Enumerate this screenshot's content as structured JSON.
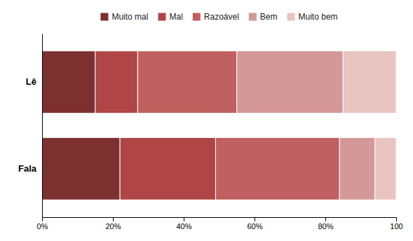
{
  "chart_data": {
    "type": "bar",
    "orientation": "horizontal",
    "stacked": true,
    "categories": [
      "Lê",
      "Fala"
    ],
    "series": [
      {
        "name": "Muito mal",
        "color": "#7D3030",
        "values": [
          15,
          22
        ]
      },
      {
        "name": "Mal",
        "color": "#B04545",
        "values": [
          12,
          27
        ]
      },
      {
        "name": "Razoável",
        "color": "#C06060",
        "values": [
          28,
          35
        ]
      },
      {
        "name": "Bem",
        "color": "#D49898",
        "values": [
          30,
          10
        ]
      },
      {
        "name": "Muito bem",
        "color": "#E8C5C0",
        "values": [
          15,
          6
        ]
      }
    ],
    "xlim": [
      0,
      100
    ],
    "xticks": [
      {
        "value": 0,
        "label": "0%"
      },
      {
        "value": 20,
        "label": "20%"
      },
      {
        "value": 40,
        "label": "40%"
      },
      {
        "value": 60,
        "label": "60%"
      },
      {
        "value": 80,
        "label": "80%"
      },
      100
    ],
    "grid": false,
    "legend": "top"
  }
}
